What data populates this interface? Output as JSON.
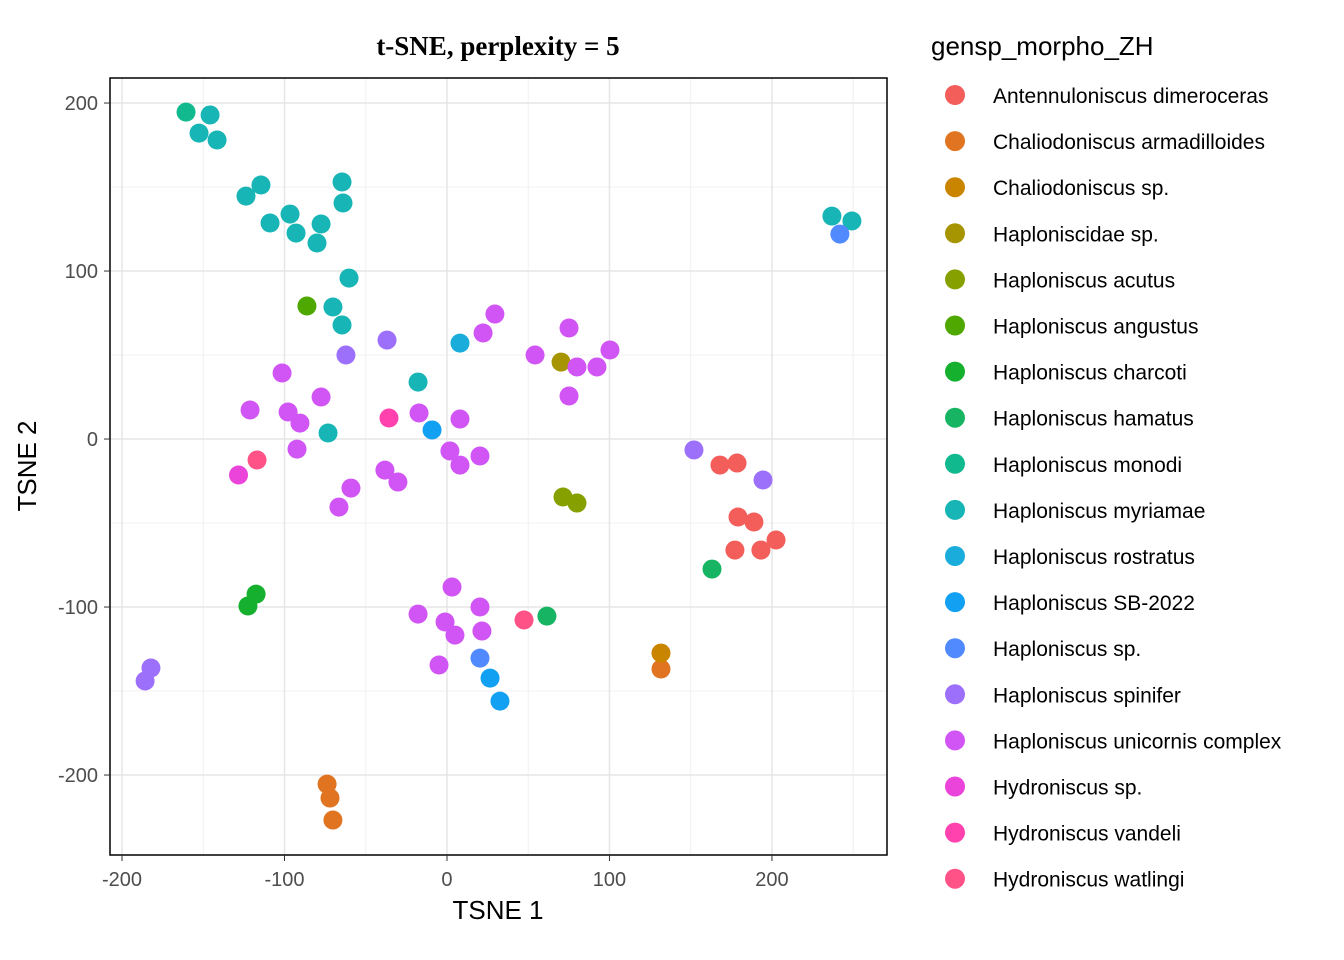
{
  "chart_data": {
    "type": "scatter",
    "title": "t-SNE, perplexity = 5",
    "xlabel": "TSNE 1",
    "ylabel": "TSNE 2",
    "xlim": [
      -207.4,
      270.8
    ],
    "ylim": [
      -247.6,
      214.9
    ],
    "xticks": [
      -200,
      -100,
      0,
      100,
      200
    ],
    "yticks": [
      -200,
      -100,
      0,
      100,
      200
    ],
    "grid": true,
    "legend_title": "gensp_morpho_ZH",
    "legend_position": "right",
    "series": [
      {
        "name": "Antennuloniscus dimeroceras",
        "color": "#F35E5A",
        "points": [
          [
            168.0,
            -15.5
          ],
          [
            178.5,
            -14.3
          ],
          [
            179.1,
            -46.4
          ],
          [
            188.9,
            -49.4
          ],
          [
            177.2,
            -66.1
          ],
          [
            193.2,
            -66.1
          ],
          [
            202.5,
            -60.1
          ]
        ]
      },
      {
        "name": "Chaliodoniscus armadilloides",
        "color": "#E07420",
        "points": [
          [
            131.7,
            -136.9
          ],
          [
            -73.8,
            -205.4
          ],
          [
            -72.0,
            -213.7
          ],
          [
            -70.2,
            -226.8
          ]
        ]
      },
      {
        "name": "Chaliodoniscus sp.",
        "color": "#C98500",
        "points": [
          [
            131.7,
            -127.4
          ]
        ]
      },
      {
        "name": "Haploniscidae sp.",
        "color": "#A69500",
        "points": [
          [
            70.2,
            45.8
          ]
        ]
      },
      {
        "name": "Haploniscus acutus",
        "color": "#86A000",
        "points": [
          [
            71.4,
            -34.5
          ],
          [
            80.0,
            -38.1
          ]
        ]
      },
      {
        "name": "Haploniscus angustus",
        "color": "#4FA800",
        "points": [
          [
            -86.2,
            79.2
          ]
        ]
      },
      {
        "name": "Haploniscus charcoti",
        "color": "#14B02E",
        "points": [
          [
            -122.5,
            -99.4
          ],
          [
            -117.5,
            -92.3
          ]
        ]
      },
      {
        "name": "Haploniscus hamatus",
        "color": "#17B563",
        "points": [
          [
            163.1,
            -77.4
          ],
          [
            61.5,
            -105.4
          ]
        ]
      },
      {
        "name": "Haploniscus monodi",
        "color": "#11B98F",
        "points": [
          [
            -160.6,
            194.6
          ]
        ]
      },
      {
        "name": "Haploniscus myriamae",
        "color": "#17B5B5",
        "points": [
          [
            -145.8,
            192.9
          ],
          [
            -152.6,
            182.1
          ],
          [
            -141.5,
            178.0
          ],
          [
            -123.7,
            144.6
          ],
          [
            -114.5,
            151.2
          ],
          [
            -108.9,
            128.6
          ],
          [
            -96.6,
            133.9
          ],
          [
            -92.9,
            122.6
          ],
          [
            -80.0,
            116.7
          ],
          [
            -77.5,
            128.0
          ],
          [
            -64.6,
            153.0
          ],
          [
            -64.0,
            140.5
          ],
          [
            -60.3,
            95.8
          ],
          [
            -70.2,
            78.6
          ],
          [
            -64.6,
            67.9
          ],
          [
            -17.8,
            33.9
          ],
          [
            -73.2,
            3.6
          ],
          [
            236.9,
            132.7
          ],
          [
            249.2,
            129.8
          ]
        ]
      },
      {
        "name": "Haploniscus rostratus",
        "color": "#1AADDB",
        "points": [
          [
            8.0,
            57.1
          ]
        ]
      },
      {
        "name": "Haploniscus SB-2022",
        "color": "#12A0F2",
        "points": [
          [
            -9.2,
            5.4
          ],
          [
            26.5,
            -142.3
          ],
          [
            32.6,
            -156.0
          ]
        ]
      },
      {
        "name": "Haploniscus sp.",
        "color": "#5189FF",
        "points": [
          [
            241.8,
            122.0
          ],
          [
            20.3,
            -130.4
          ]
        ]
      },
      {
        "name": "Haploniscus spinifer",
        "color": "#9C70FA",
        "points": [
          [
            -62.2,
            50.0
          ],
          [
            -36.9,
            58.9
          ],
          [
            152.0,
            -6.5
          ],
          [
            194.5,
            -24.4
          ],
          [
            -182.2,
            -136.3
          ],
          [
            -185.8,
            -144.0
          ]
        ]
      },
      {
        "name": "Haploniscus unicornis complex",
        "color": "#D155F5",
        "points": [
          [
            29.5,
            74.4
          ],
          [
            22.2,
            63.1
          ],
          [
            54.2,
            50.0
          ],
          [
            75.1,
            66.1
          ],
          [
            80.0,
            42.9
          ],
          [
            92.3,
            42.9
          ],
          [
            100.3,
            53.0
          ],
          [
            75.1,
            25.6
          ],
          [
            -101.5,
            39.3
          ],
          [
            -121.2,
            17.3
          ],
          [
            -97.8,
            16.1
          ],
          [
            -90.5,
            9.5
          ],
          [
            -77.5,
            25.0
          ],
          [
            -92.3,
            -6.0
          ],
          [
            -17.2,
            15.5
          ],
          [
            8.0,
            11.9
          ],
          [
            1.8,
            -7.1
          ],
          [
            8.0,
            -15.5
          ],
          [
            20.3,
            -10.1
          ],
          [
            -38.2,
            -18.5
          ],
          [
            -30.2,
            -25.6
          ],
          [
            -59.1,
            -29.2
          ],
          [
            -66.5,
            -40.5
          ],
          [
            3.1,
            -88.1
          ],
          [
            -17.8,
            -104.2
          ],
          [
            20.3,
            -100.0
          ],
          [
            -1.2,
            -108.9
          ],
          [
            4.9,
            -116.7
          ],
          [
            21.5,
            -114.3
          ],
          [
            -4.9,
            -134.5
          ]
        ]
      },
      {
        "name": "Hydroniscus sp.",
        "color": "#EB44DA",
        "points": [
          [
            -128.3,
            -21.4
          ]
        ]
      },
      {
        "name": "Hydroniscus vandeli",
        "color": "#FF42AD",
        "points": [
          [
            -35.7,
            12.5
          ]
        ]
      },
      {
        "name": "Hydroniscus watlingi",
        "color": "#FF5286",
        "points": [
          [
            -116.9,
            -12.5
          ],
          [
            47.4,
            -107.7
          ]
        ]
      }
    ]
  }
}
